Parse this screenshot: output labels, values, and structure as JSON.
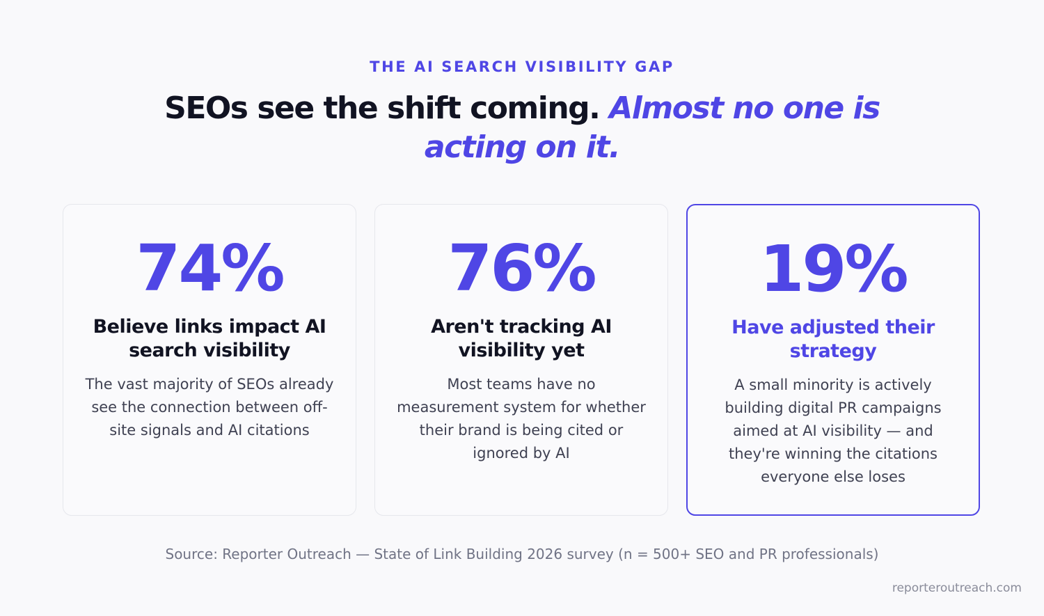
{
  "eyebrow": "THE AI SEARCH VISIBILITY GAP",
  "headline": {
    "part1": "SEOs see the shift coming. ",
    "part2": "Almost no one is acting on it."
  },
  "cards": [
    {
      "value": "74%",
      "label": "Believe links impact AI search visibility",
      "description": "The vast majority of SEOs already see the connection between off-site signals and AI citations"
    },
    {
      "value": "76%",
      "label": "Aren't tracking AI visibility yet",
      "description": "Most teams have no measurement system for whether their brand is being cited or ignored by AI"
    },
    {
      "value": "19%",
      "label": "Have adjusted their strategy",
      "description": "A small minority is actively building digital PR campaigns aimed at AI visibility — and they're winning the citations everyone else loses"
    }
  ],
  "source": "Source: Reporter Outreach — State of Link Building 2026 survey (n = 500+ SEO and PR professionals)",
  "footer_url": "reporteroutreach.com",
  "colors": {
    "accent": "#4f46e5",
    "text_dark": "#111322",
    "background": "#f9f9fb"
  }
}
